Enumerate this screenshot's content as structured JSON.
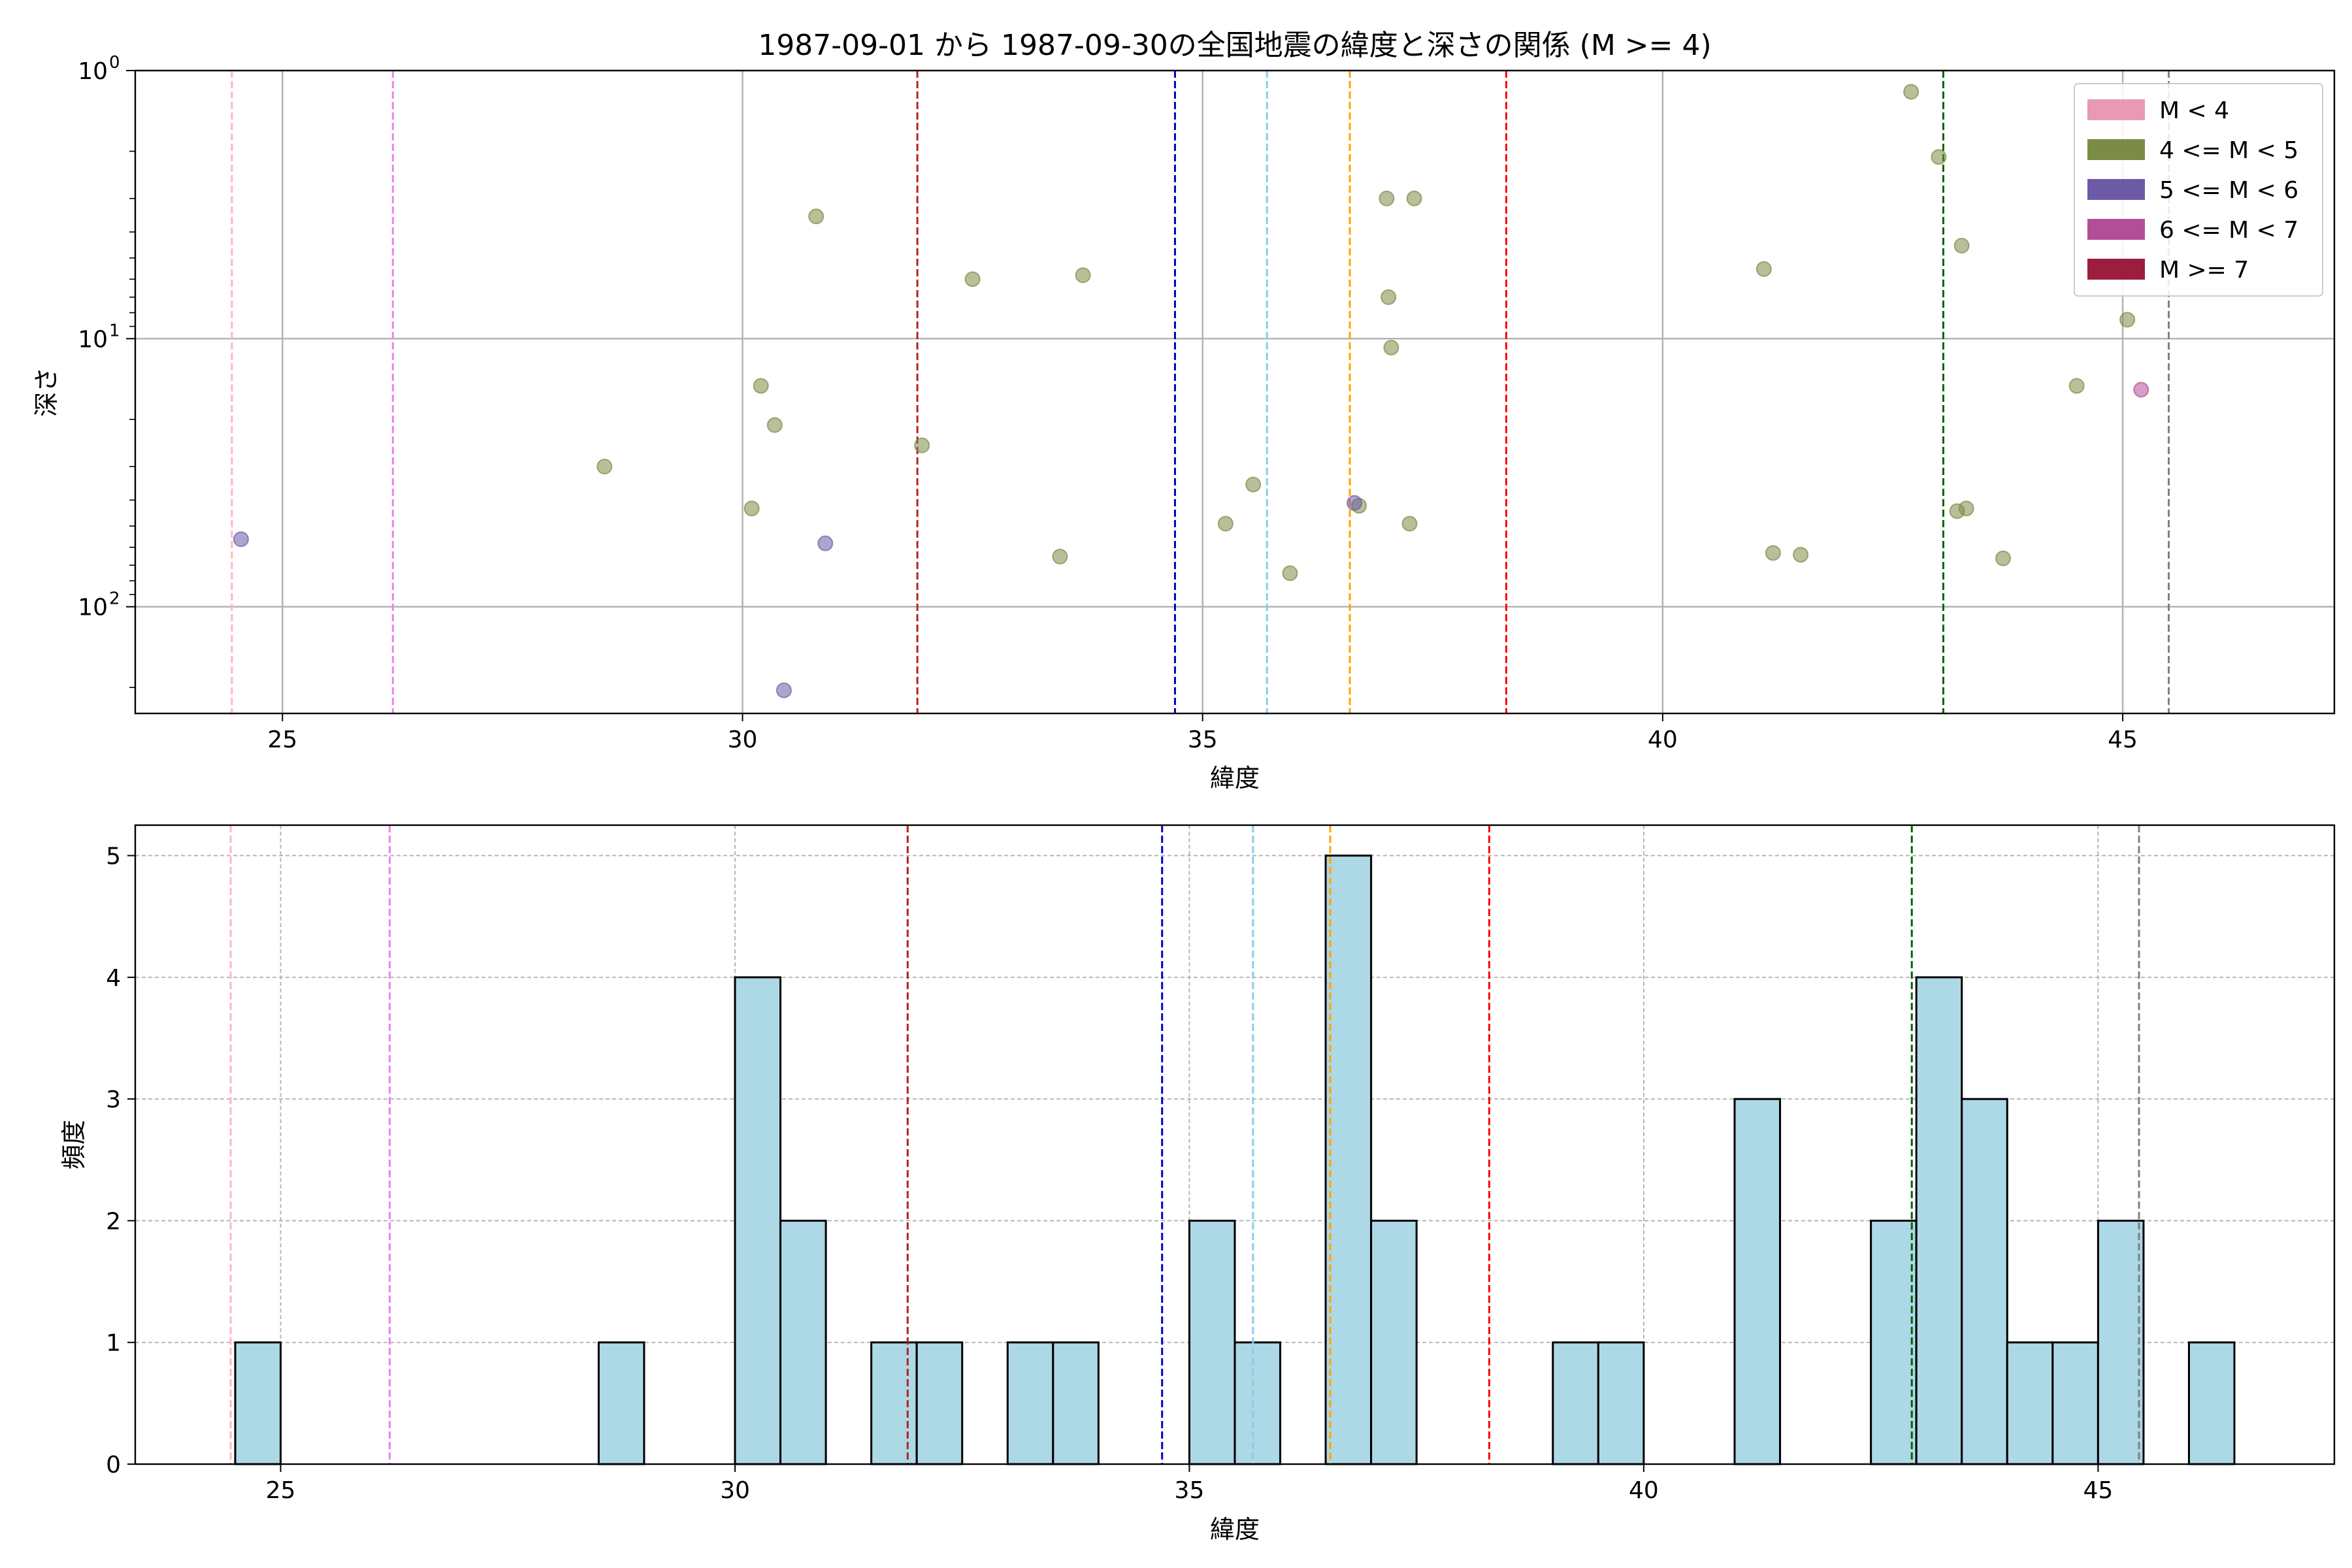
{
  "title": "1987-09-01 から 1987-09-30の全国地震の緯度と深さの関係 (M >= 4)",
  "chart_data": [
    {
      "type": "scatter",
      "xlabel": "緯度",
      "ylabel": "深さ",
      "xlim": [
        23.4,
        47.3
      ],
      "ylim": [
        250,
        1
      ],
      "yscale": "log",
      "y_inverted": true,
      "grid": true,
      "xticks": [
        25,
        30,
        35,
        40,
        45
      ],
      "xtick_labels": [
        "25",
        "30",
        "35",
        "40",
        "45"
      ],
      "yticks": [
        1,
        10,
        100
      ],
      "ytick_labels": [
        "10",
        "10",
        "10"
      ],
      "ytick_exps": [
        "0",
        "1",
        "2"
      ],
      "legend_position": "upper right",
      "legend": [
        {
          "label": "M < 4",
          "color": "#e899b4"
        },
        {
          "label": "4 <= M < 5",
          "color": "#7b8c46"
        },
        {
          "label": "5 <= M < 6",
          "color": "#6d5aa6"
        },
        {
          "label": "6 <= M < 7",
          "color": "#b44d98"
        },
        {
          "label": "M >= 7",
          "color": "#9c1d3e"
        }
      ],
      "series": [
        {
          "name": "4 <= M < 5",
          "color": "#7b8c46",
          "points": [
            {
              "x": 28.5,
              "y": 30
            },
            {
              "x": 30.1,
              "y": 43
            },
            {
              "x": 30.2,
              "y": 15
            },
            {
              "x": 30.35,
              "y": 21
            },
            {
              "x": 30.8,
              "y": 3.5
            },
            {
              "x": 31.95,
              "y": 25
            },
            {
              "x": 32.5,
              "y": 6
            },
            {
              "x": 33.45,
              "y": 65
            },
            {
              "x": 33.7,
              "y": 5.8
            },
            {
              "x": 35.25,
              "y": 49
            },
            {
              "x": 35.55,
              "y": 35
            },
            {
              "x": 35.95,
              "y": 75
            },
            {
              "x": 36.7,
              "y": 42
            },
            {
              "x": 37.0,
              "y": 3
            },
            {
              "x": 37.02,
              "y": 7
            },
            {
              "x": 37.05,
              "y": 10.8
            },
            {
              "x": 37.25,
              "y": 49
            },
            {
              "x": 37.3,
              "y": 3
            },
            {
              "x": 41.1,
              "y": 5.5
            },
            {
              "x": 41.2,
              "y": 63
            },
            {
              "x": 41.5,
              "y": 64
            },
            {
              "x": 42.7,
              "y": 1.2
            },
            {
              "x": 43.0,
              "y": 2.1
            },
            {
              "x": 43.2,
              "y": 44
            },
            {
              "x": 43.25,
              "y": 4.5
            },
            {
              "x": 43.3,
              "y": 43
            },
            {
              "x": 43.7,
              "y": 66
            },
            {
              "x": 44.5,
              "y": 15
            },
            {
              "x": 45.05,
              "y": 8.5
            }
          ]
        },
        {
          "name": "5 <= M < 6",
          "color": "#6d5aa6",
          "points": [
            {
              "x": 24.55,
              "y": 56
            },
            {
              "x": 30.45,
              "y": 205
            },
            {
              "x": 30.9,
              "y": 58
            },
            {
              "x": 36.65,
              "y": 41
            }
          ]
        },
        {
          "name": "6 <= M < 7",
          "color": "#b44d98",
          "points": [
            {
              "x": 45.2,
              "y": 15.5
            }
          ]
        }
      ],
      "vlines": [
        {
          "x": 24.45,
          "color": "#ffb6c1"
        },
        {
          "x": 26.2,
          "color": "#ee82ee"
        },
        {
          "x": 31.9,
          "color": "#b22222"
        },
        {
          "x": 34.7,
          "color": "#0000cd"
        },
        {
          "x": 35.7,
          "color": "#87ceeb"
        },
        {
          "x": 36.6,
          "color": "#ffa500"
        },
        {
          "x": 38.3,
          "color": "#ff0000"
        },
        {
          "x": 43.05,
          "color": "#006400"
        },
        {
          "x": 45.5,
          "color": "#808080"
        }
      ]
    },
    {
      "type": "bar",
      "xlabel": "緯度",
      "ylabel": "頻度",
      "xlim": [
        23.4,
        47.6
      ],
      "ylim": [
        0,
        5.25
      ],
      "grid": true,
      "xticks": [
        25,
        30,
        35,
        40,
        45
      ],
      "xtick_labels": [
        "25",
        "30",
        "35",
        "40",
        "45"
      ],
      "yticks": [
        0,
        1,
        2,
        3,
        4,
        5
      ],
      "ytick_labels": [
        "0",
        "1",
        "2",
        "3",
        "4",
        "5"
      ],
      "bar_color": "#add8e6",
      "bin_width": 0.5,
      "bins": [
        {
          "start": 24.5,
          "count": 1
        },
        {
          "start": 28.5,
          "count": 1
        },
        {
          "start": 30.0,
          "count": 4
        },
        {
          "start": 30.5,
          "count": 2
        },
        {
          "start": 31.5,
          "count": 1
        },
        {
          "start": 32.0,
          "count": 1
        },
        {
          "start": 33.0,
          "count": 1
        },
        {
          "start": 33.5,
          "count": 1
        },
        {
          "start": 35.0,
          "count": 2
        },
        {
          "start": 35.5,
          "count": 1
        },
        {
          "start": 36.5,
          "count": 5
        },
        {
          "start": 37.0,
          "count": 2
        },
        {
          "start": 39.0,
          "count": 1
        },
        {
          "start": 39.5,
          "count": 1
        },
        {
          "start": 41.0,
          "count": 3
        },
        {
          "start": 42.5,
          "count": 2
        },
        {
          "start": 43.0,
          "count": 4
        },
        {
          "start": 43.5,
          "count": 3
        },
        {
          "start": 44.0,
          "count": 1
        },
        {
          "start": 44.5,
          "count": 1
        },
        {
          "start": 45.0,
          "count": 2
        },
        {
          "start": 46.0,
          "count": 1
        }
      ],
      "vlines": [
        {
          "x": 24.45,
          "color": "#ffb6c1"
        },
        {
          "x": 26.2,
          "color": "#ee82ee"
        },
        {
          "x": 31.9,
          "color": "#b22222"
        },
        {
          "x": 34.7,
          "color": "#0000cd"
        },
        {
          "x": 35.7,
          "color": "#87ceeb"
        },
        {
          "x": 36.55,
          "color": "#ffa500"
        },
        {
          "x": 38.3,
          "color": "#ff0000"
        },
        {
          "x": 42.95,
          "color": "#006400"
        },
        {
          "x": 45.45,
          "color": "#808080"
        }
      ]
    }
  ]
}
